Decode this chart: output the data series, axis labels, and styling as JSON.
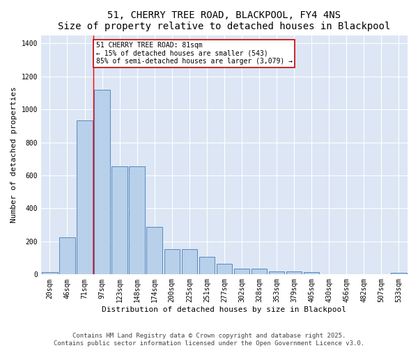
{
  "title": "51, CHERRY TREE ROAD, BLACKPOOL, FY4 4NS",
  "subtitle": "Size of property relative to detached houses in Blackpool",
  "xlabel": "Distribution of detached houses by size in Blackpool",
  "ylabel": "Number of detached properties",
  "categories": [
    "20sqm",
    "46sqm",
    "71sqm",
    "97sqm",
    "123sqm",
    "148sqm",
    "174sqm",
    "200sqm",
    "225sqm",
    "251sqm",
    "277sqm",
    "302sqm",
    "328sqm",
    "353sqm",
    "379sqm",
    "405sqm",
    "430sqm",
    "456sqm",
    "482sqm",
    "507sqm",
    "533sqm"
  ],
  "values": [
    15,
    225,
    935,
    1120,
    655,
    655,
    290,
    155,
    155,
    105,
    65,
    35,
    35,
    20,
    20,
    15,
    0,
    0,
    0,
    0,
    10
  ],
  "bar_color": "#b8d0ea",
  "bar_edge_color": "#5588bb",
  "bg_color": "#dce6f5",
  "grid_color": "#ffffff",
  "red_line_x": 2.5,
  "annotation_text": "51 CHERRY TREE ROAD: 81sqm\n← 15% of detached houses are smaller (543)\n85% of semi-detached houses are larger (3,079) →",
  "annotation_box_color": "#ffffff",
  "annotation_box_edge": "#cc0000",
  "footnote1": "Contains HM Land Registry data © Crown copyright and database right 2025.",
  "footnote2": "Contains public sector information licensed under the Open Government Licence v3.0.",
  "ylim": [
    0,
    1450
  ],
  "title_fontsize": 10,
  "subtitle_fontsize": 9,
  "xlabel_fontsize": 8,
  "ylabel_fontsize": 8,
  "tick_fontsize": 7,
  "annotation_fontsize": 7,
  "footnote_fontsize": 6.5
}
